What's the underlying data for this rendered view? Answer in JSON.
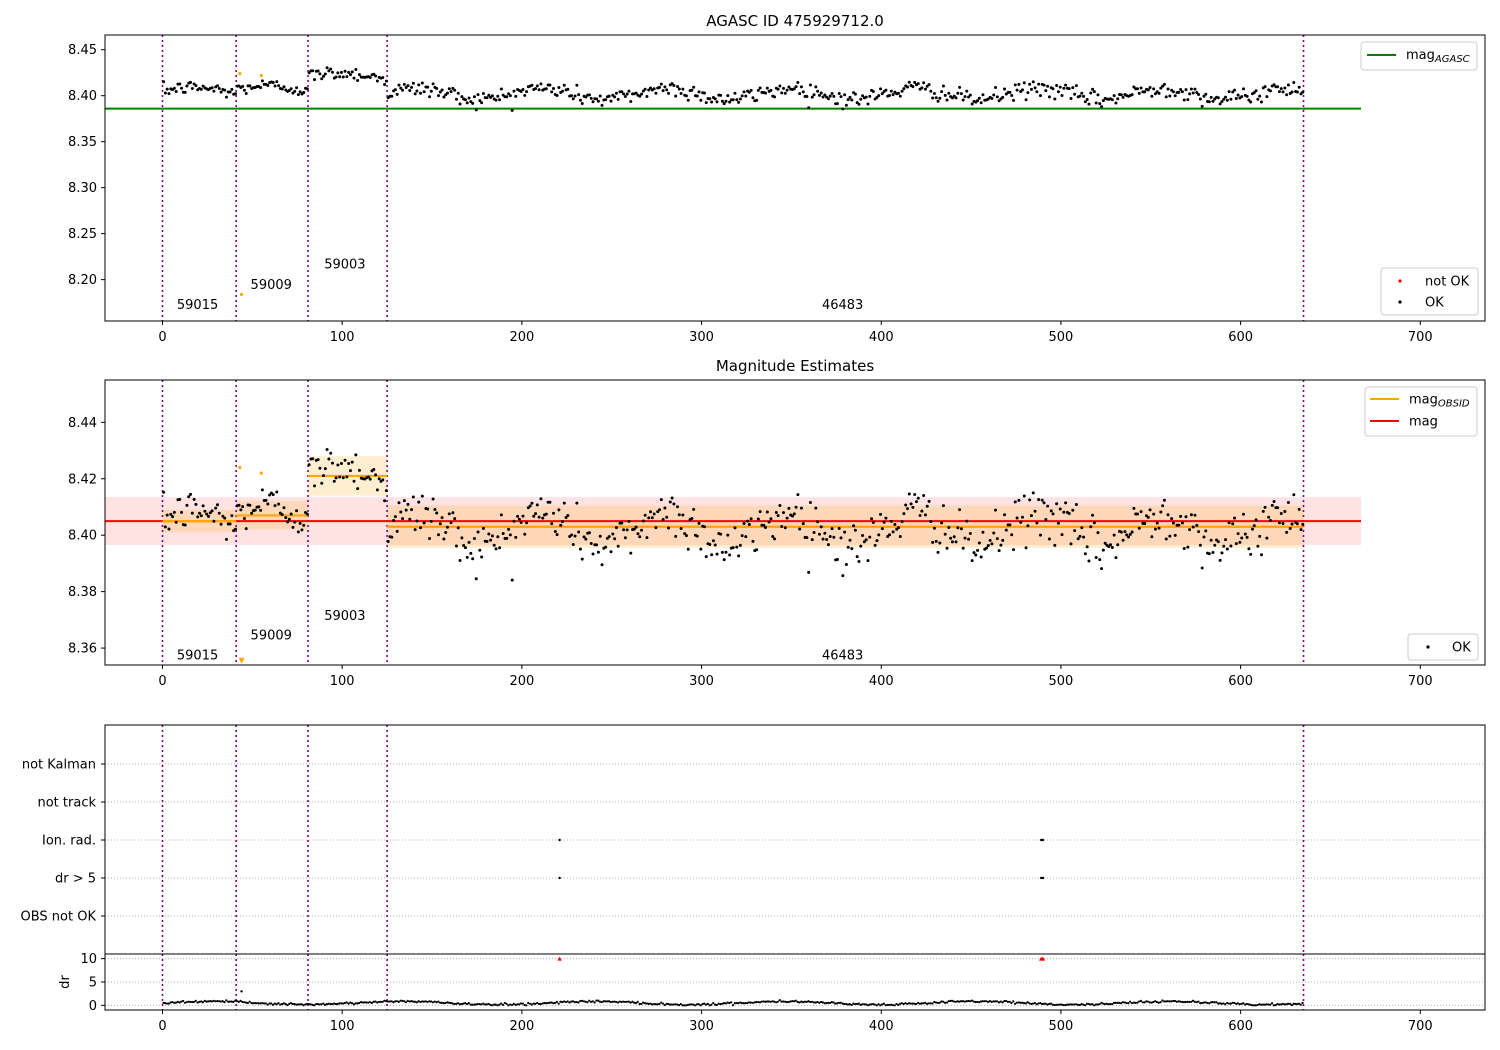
{
  "chart_data": [
    {
      "type": "scatter",
      "title": "AGASC ID 475929712.0",
      "xlabel": "",
      "ylabel": "",
      "xlim": [
        -32,
        736
      ],
      "ylim": [
        8.155,
        8.466
      ],
      "xticks": [
        0,
        100,
        200,
        300,
        400,
        500,
        600,
        700
      ],
      "yticks": [
        8.2,
        8.25,
        8.3,
        8.35,
        8.4,
        8.45
      ],
      "vlines": [
        0,
        41,
        81,
        125,
        635
      ],
      "obsid_labels": [
        {
          "x": 8,
          "y": 8.168,
          "text": "59015"
        },
        {
          "x": 49,
          "y": 8.19,
          "text": "59009"
        },
        {
          "x": 90,
          "y": 8.212,
          "text": "59003"
        },
        {
          "x": 367,
          "y": 8.168,
          "text": "46483"
        }
      ],
      "mag_agasc_line": {
        "y": 8.386,
        "x_range": [
          -32,
          667
        ],
        "color": "#008000"
      },
      "legend_lines": [
        {
          "label": "mag",
          "sub": "AGASC",
          "color": "#008000"
        }
      ],
      "legend_points": [
        {
          "label": "not OK",
          "color": "#ff0000"
        },
        {
          "label": "OK",
          "color": "#000000"
        }
      ],
      "segments": [
        {
          "x0": 0,
          "x1": 41,
          "mean": 8.405,
          "amp": 0.004,
          "noise": 0.004
        },
        {
          "x0": 41,
          "x1": 81,
          "mean": 8.407,
          "amp": 0.004,
          "noise": 0.004
        },
        {
          "x0": 81,
          "x1": 125,
          "mean": 8.421,
          "amp": 0.004,
          "noise": 0.004
        },
        {
          "x0": 125,
          "x1": 635,
          "mean": 8.402,
          "amp": 0.006,
          "noise": 0.005
        }
      ],
      "orange_points": [
        {
          "x": 43,
          "y": 8.424
        },
        {
          "x": 55,
          "y": 8.422
        },
        {
          "x": 44,
          "y": 8.184
        }
      ]
    },
    {
      "type": "scatter",
      "title": "Magnitude Estimates",
      "xlabel": "",
      "ylabel": "",
      "xlim": [
        -32,
        736
      ],
      "ylim": [
        8.354,
        8.455
      ],
      "xticks": [
        0,
        100,
        200,
        300,
        400,
        500,
        600,
        700
      ],
      "yticks": [
        8.36,
        8.38,
        8.4,
        8.42,
        8.44
      ],
      "vlines": [
        0,
        41,
        81,
        125,
        635
      ],
      "obsid_labels": [
        {
          "x": 8,
          "y": 8.356,
          "text": "59015"
        },
        {
          "x": 49,
          "y": 8.363,
          "text": "59009"
        },
        {
          "x": 90,
          "y": 8.37,
          "text": "59003"
        },
        {
          "x": 367,
          "y": 8.356,
          "text": "46483"
        }
      ],
      "mag_line": {
        "y": 8.405,
        "x_range": [
          -32,
          667
        ],
        "band": [
          8.3965,
          8.4135
        ],
        "color": "#ff0000"
      },
      "mag_obsid": [
        {
          "x0": 0,
          "x1": 41,
          "y": 8.405,
          "band": [
            8.401,
            8.409
          ]
        },
        {
          "x0": 41,
          "x1": 81,
          "y": 8.407,
          "band": [
            8.402,
            8.412
          ]
        },
        {
          "x0": 81,
          "x1": 125,
          "y": 8.421,
          "band": [
            8.414,
            8.428
          ]
        },
        {
          "x0": 125,
          "x1": 635,
          "y": 8.403,
          "band": [
            8.3955,
            8.4105
          ]
        }
      ],
      "legend_lines": [
        {
          "label": "mag",
          "sub": "OBSID",
          "color": "#ffa500"
        },
        {
          "label": "mag",
          "sub": "",
          "color": "#ff0000"
        }
      ],
      "legend_points": [
        {
          "label": "OK",
          "color": "#000000"
        }
      ],
      "orange_points": [
        {
          "x": 43,
          "y": 8.424
        },
        {
          "x": 55,
          "y": 8.422
        },
        {
          "x": 44,
          "y": 8.3555
        }
      ]
    },
    {
      "type": "scatter",
      "title": "",
      "xlabel": "",
      "ylabel": "",
      "xlim": [
        -32,
        736
      ],
      "categories": [
        "not Kalman",
        "not track",
        "Ion. rad.",
        "dr > 5",
        "OBS not OK"
      ],
      "vlines": [
        0,
        41,
        81,
        125,
        635
      ],
      "flags": [
        {
          "category": "Ion. rad.",
          "x": [
            221,
            489,
            490
          ]
        },
        {
          "category": "dr > 5",
          "x": [
            221,
            489,
            490
          ]
        }
      ]
    },
    {
      "type": "scatter",
      "title": "",
      "xlabel": "",
      "ylabel": "dr",
      "xlim": [
        -32,
        736
      ],
      "ylim": [
        -1,
        11
      ],
      "xticks": [
        0,
        100,
        200,
        300,
        400,
        500,
        600,
        700
      ],
      "yticks": [
        0,
        5,
        10
      ],
      "vlines": [
        0,
        41,
        81,
        125,
        635
      ],
      "baseline": 0.5,
      "outliers": [
        {
          "x": 44,
          "y": 3.0
        }
      ],
      "capped": [
        {
          "x": 221,
          "y": 10
        },
        {
          "x": 489,
          "y": 10
        },
        {
          "x": 490,
          "y": 10
        }
      ]
    }
  ]
}
